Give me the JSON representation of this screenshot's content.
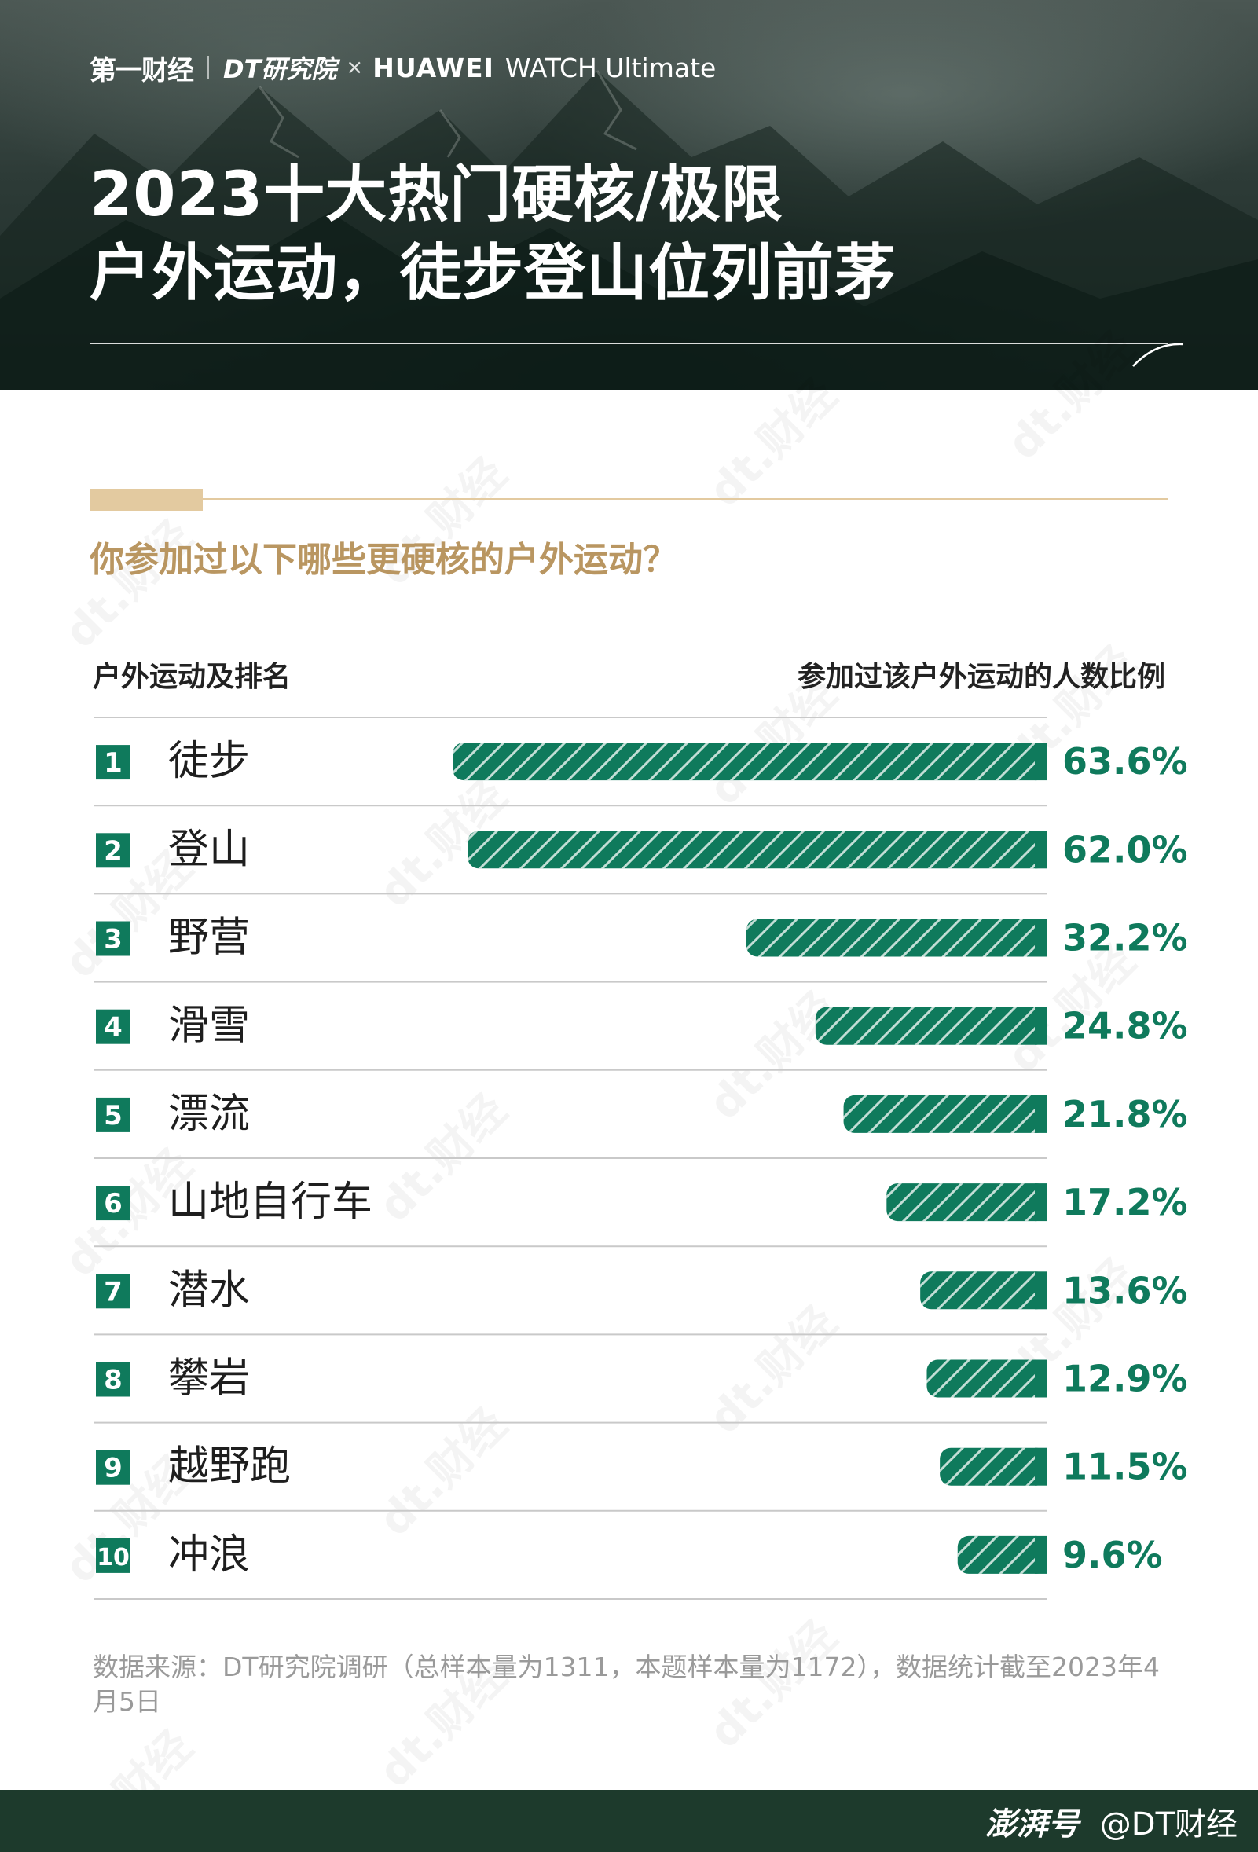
{
  "header": {
    "brand_yicai": "第一财经",
    "brand_dt": "DT研究院",
    "brand_x": "×",
    "brand_huawei": "HUAWEI",
    "brand_watch": "WATCH Ultimate",
    "title_line1": "2023十大热门硬核/极限",
    "title_line2": "户外运动，徒步登山位列前茅"
  },
  "question": "你参加过以下哪些更硬核的户外运动？",
  "col_left": "户外运动及排名",
  "col_right": "参加过该户外运动的人数比例",
  "colors": {
    "bar": "#0f7a5c",
    "rank_box": "#0f7a5c",
    "value_text": "#0f7a5c",
    "accent_gold": "#b99661"
  },
  "chart_data": {
    "type": "bar",
    "orientation": "horizontal",
    "categories": [
      "徒步",
      "登山",
      "野营",
      "滑雪",
      "漂流",
      "山地自行车",
      "潜水",
      "攀岩",
      "越野跑",
      "冲浪"
    ],
    "ranks": [
      "1",
      "2",
      "3",
      "4",
      "5",
      "6",
      "7",
      "8",
      "9",
      "10"
    ],
    "values": [
      63.6,
      62.0,
      32.2,
      24.8,
      21.8,
      17.2,
      13.6,
      12.9,
      11.5,
      9.6
    ],
    "value_labels": [
      "63.6%",
      "62.0%",
      "32.2%",
      "24.8%",
      "21.8%",
      "17.2%",
      "13.6%",
      "12.9%",
      "11.5%",
      "9.6%"
    ],
    "unit": "%",
    "xlim": [
      0,
      100
    ],
    "grid": false
  },
  "source": "数据来源：DT研究院调研（总样本量为1311，本题样本量为1172），数据统计截至2023年4月5日",
  "footer": {
    "paper": "澎湃号",
    "handle": "@DT财经"
  },
  "watermark": "dt.财经"
}
